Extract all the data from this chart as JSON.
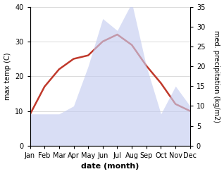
{
  "months": [
    "Jan",
    "Feb",
    "Mar",
    "Apr",
    "May",
    "Jun",
    "Jul",
    "Aug",
    "Sep",
    "Oct",
    "Nov",
    "Dec"
  ],
  "temperature": [
    9,
    17,
    22,
    25,
    26,
    30,
    32,
    29,
    23,
    18,
    12,
    10
  ],
  "precipitation": [
    8,
    8,
    8,
    10,
    20,
    32,
    29,
    36,
    20,
    8,
    15,
    10
  ],
  "temp_color": "#c0392b",
  "precip_fill_color": "#c5cdf0",
  "title": "",
  "xlabel": "date (month)",
  "ylabel_left": "max temp (C)",
  "ylabel_right": "med. precipitation (kg/m2)",
  "ylim_left": [
    0,
    40
  ],
  "ylim_right": [
    0,
    35
  ],
  "yticks_left": [
    0,
    10,
    20,
    30,
    40
  ],
  "yticks_right": [
    0,
    5,
    10,
    15,
    20,
    25,
    30,
    35
  ],
  "bg_color": "#ffffff",
  "grid_color": "#cccccc",
  "temp_linewidth": 1.8,
  "xlabel_fontsize": 8,
  "ylabel_fontsize": 7,
  "tick_fontsize": 7
}
